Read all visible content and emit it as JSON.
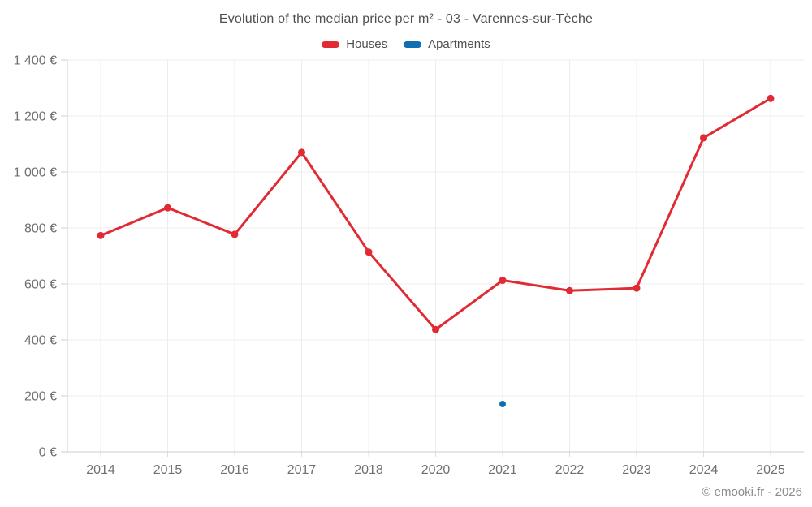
{
  "header": {
    "title": "Evolution of the median price per m² - 03 - Varennes-sur-Tèche"
  },
  "legend": {
    "items": [
      {
        "label": "Houses",
        "color": "#e02b35"
      },
      {
        "label": "Apartments",
        "color": "#0f6eb2"
      }
    ]
  },
  "footer": {
    "attribution": "© emooki.fr - 2026"
  },
  "colors": {
    "houses": "#e02b35",
    "apartments": "#0f6eb2",
    "gridline": "#ededed",
    "axis_line": "#cccccc",
    "tick_label": "#707070",
    "title_text": "#4f4f4f",
    "attribution_text": "#8c8c8c",
    "background": "#ffffff"
  },
  "chart_data": {
    "type": "line",
    "title": "Evolution of the median price per m² - 03 - Varennes-sur-Tèche",
    "xlabel": "",
    "ylabel": "",
    "categories": [
      "2014",
      "2015",
      "2016",
      "2017",
      "2018",
      "2020",
      "2021",
      "2022",
      "2023",
      "2024",
      "2025"
    ],
    "series": [
      {
        "name": "Houses",
        "color": "#e02b35",
        "marker_radius": 4.5,
        "line_width": 3,
        "values": [
          773,
          872,
          777,
          1070,
          714,
          437,
          613,
          576,
          585,
          1122,
          1263
        ]
      },
      {
        "name": "Apartments",
        "color": "#0f6eb2",
        "marker_radius": 4,
        "line_width": 3,
        "values": [
          null,
          null,
          null,
          null,
          null,
          null,
          171,
          null,
          null,
          null,
          null
        ]
      }
    ],
    "ylim": [
      0,
      1400
    ],
    "ytick_step": 200,
    "ytick_labels": [
      "0 €",
      "200 €",
      "400 €",
      "600 €",
      "800 €",
      "1 000 €",
      "1 200 €",
      "1 400 €"
    ],
    "grid": true,
    "legend_position": "top",
    "footer": "© emooki.fr - 2026"
  }
}
